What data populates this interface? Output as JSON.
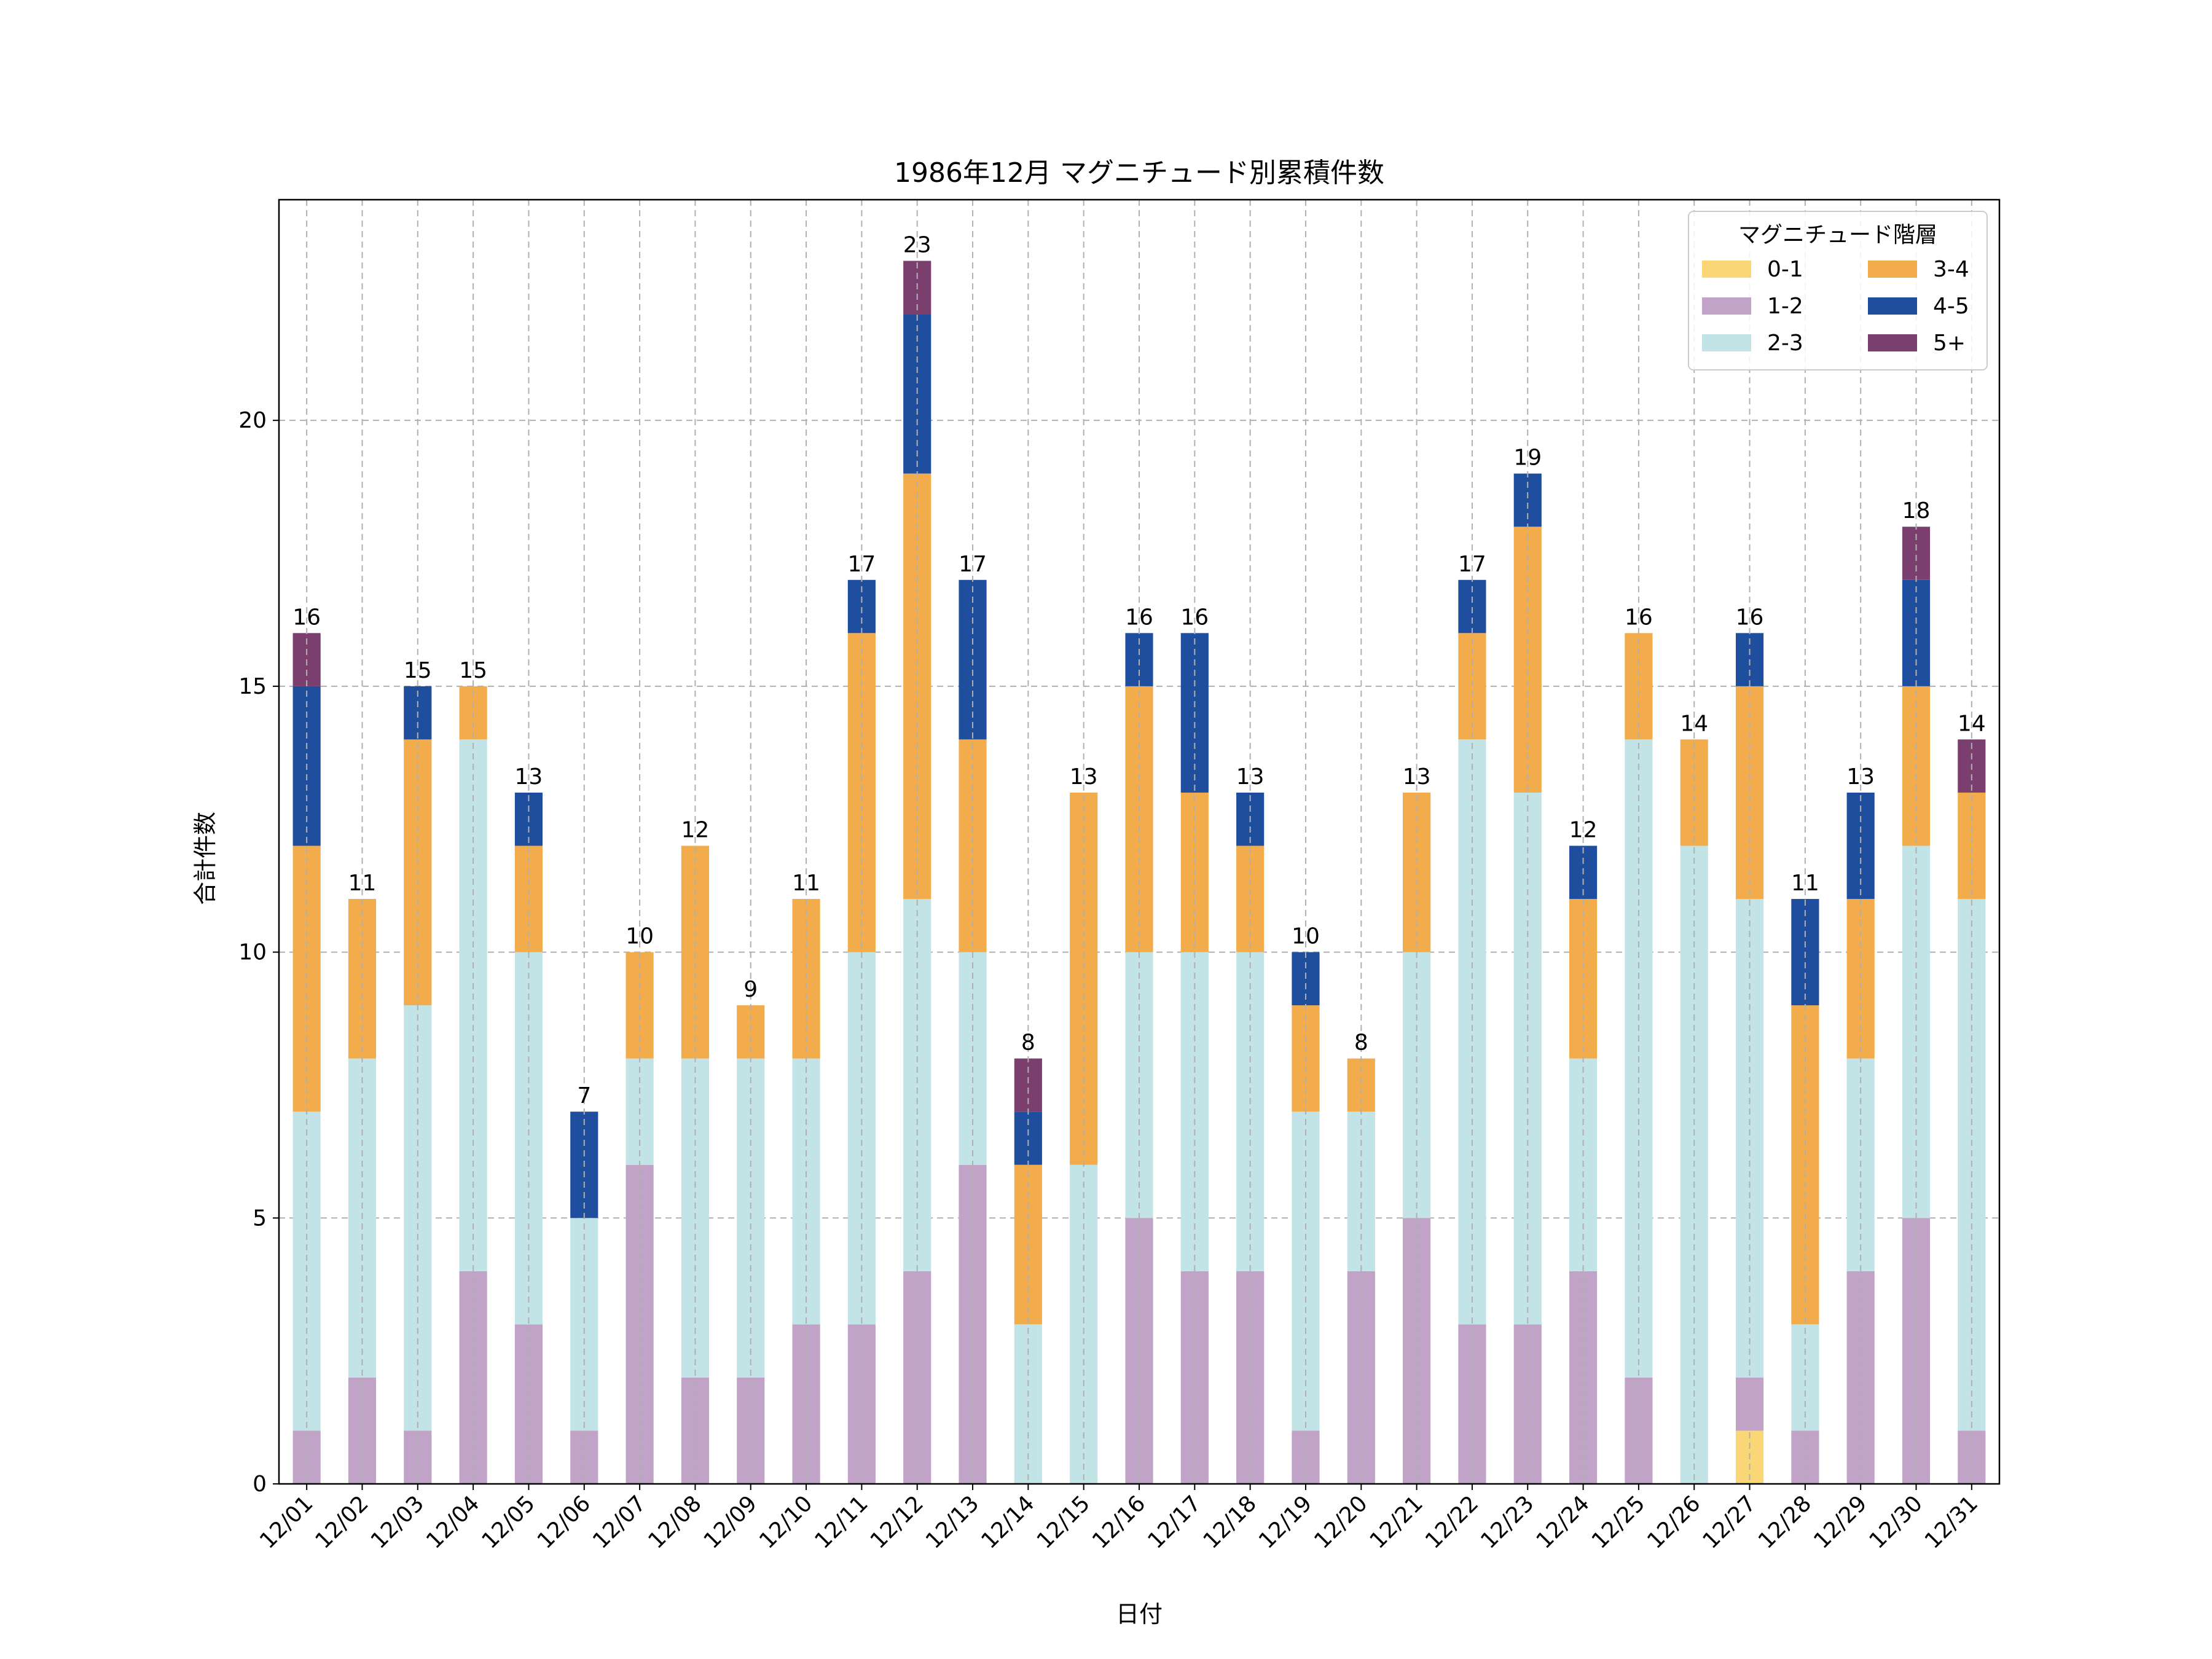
{
  "chart_data": {
    "type": "bar",
    "stacked": true,
    "title": "1986年12月 マグニチュード別累積件数",
    "xlabel": "日付",
    "ylabel": "合計件数",
    "ylim": [
      0,
      24.15
    ],
    "yticks": [
      0,
      5,
      10,
      15,
      20
    ],
    "grid": true,
    "categories": [
      "12/01",
      "12/02",
      "12/03",
      "12/04",
      "12/05",
      "12/06",
      "12/07",
      "12/08",
      "12/09",
      "12/10",
      "12/11",
      "12/12",
      "12/13",
      "12/14",
      "12/15",
      "12/16",
      "12/17",
      "12/18",
      "12/19",
      "12/20",
      "12/21",
      "12/22",
      "12/23",
      "12/24",
      "12/25",
      "12/26",
      "12/27",
      "12/28",
      "12/29",
      "12/30",
      "12/31"
    ],
    "series": [
      {
        "name": "0-1",
        "color": "#fad676",
        "values": [
          0,
          0,
          0,
          0,
          0,
          0,
          0,
          0,
          0,
          0,
          0,
          0,
          0,
          0,
          0,
          0,
          0,
          0,
          0,
          0,
          0,
          0,
          0,
          0,
          0,
          0,
          1,
          0,
          0,
          0,
          0
        ]
      },
      {
        "name": "1-2",
        "color": "#c0a3c7",
        "values": [
          1,
          2,
          1,
          4,
          3,
          1,
          6,
          2,
          2,
          3,
          3,
          4,
          6,
          0,
          0,
          5,
          4,
          4,
          1,
          4,
          5,
          3,
          3,
          4,
          2,
          0,
          1,
          1,
          4,
          5,
          1
        ]
      },
      {
        "name": "2-3",
        "color": "#c2e4e6",
        "values": [
          6,
          6,
          8,
          10,
          7,
          4,
          2,
          6,
          6,
          5,
          7,
          7,
          4,
          3,
          6,
          5,
          6,
          6,
          6,
          3,
          5,
          11,
          10,
          4,
          12,
          12,
          9,
          2,
          4,
          7,
          10
        ]
      },
      {
        "name": "3-4",
        "color": "#f2ac4c",
        "values": [
          5,
          3,
          5,
          1,
          2,
          0,
          2,
          4,
          1,
          3,
          6,
          8,
          4,
          3,
          7,
          5,
          3,
          2,
          2,
          1,
          3,
          2,
          5,
          3,
          2,
          2,
          4,
          6,
          3,
          3,
          2
        ]
      },
      {
        "name": "4-5",
        "color": "#1f4e9e",
        "values": [
          3,
          0,
          1,
          0,
          1,
          2,
          0,
          0,
          0,
          0,
          1,
          3,
          3,
          1,
          0,
          1,
          3,
          1,
          1,
          0,
          0,
          1,
          1,
          1,
          0,
          0,
          1,
          2,
          2,
          2,
          0
        ]
      },
      {
        "name": "5+",
        "color": "#7a3f6e",
        "values": [
          1,
          0,
          0,
          0,
          0,
          0,
          0,
          0,
          0,
          0,
          0,
          1,
          0,
          1,
          0,
          0,
          0,
          0,
          0,
          0,
          0,
          0,
          0,
          0,
          0,
          0,
          0,
          0,
          0,
          1,
          1
        ]
      }
    ],
    "totals": [
      16,
      11,
      15,
      15,
      13,
      7,
      10,
      12,
      9,
      11,
      17,
      23,
      17,
      8,
      13,
      16,
      16,
      13,
      10,
      8,
      13,
      17,
      19,
      12,
      16,
      14,
      16,
      11,
      13,
      18,
      14
    ],
    "legend": {
      "title": "マグニチュード階層",
      "position": "top-right",
      "ncol": 2
    }
  }
}
